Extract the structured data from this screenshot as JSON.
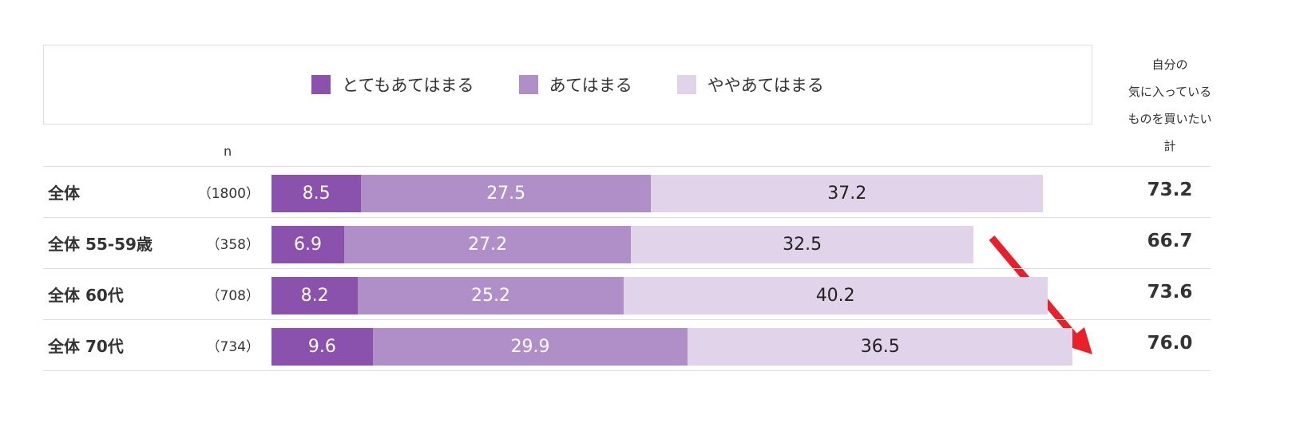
{
  "chart_data": {
    "type": "bar",
    "orientation": "horizontal",
    "stacked": true,
    "legend_position": "top",
    "n_header": "n",
    "total_header": [
      "自分の",
      "気に入っている",
      "ものを買いたい",
      "計"
    ],
    "categories": [
      "全体",
      "全体 55-59歳",
      "全体 60代",
      "全体 70代"
    ],
    "n_values": [
      "（1800）",
      "（358）",
      "（708）",
      "（734）"
    ],
    "series": [
      {
        "name": "とてもあてはまる",
        "color": "#8a52ad",
        "label_color": "#ffffff",
        "values": [
          8.5,
          6.9,
          8.2,
          9.6
        ]
      },
      {
        "name": "あてはまる",
        "color": "#b08fc9",
        "label_color": "#ffffff",
        "values": [
          27.5,
          27.2,
          25.2,
          29.9
        ]
      },
      {
        "name": "ややあてはまる",
        "color": "#e0d3ea",
        "label_color": "#222222",
        "values": [
          37.2,
          32.5,
          40.2,
          36.5
        ]
      }
    ],
    "totals": [
      "73.2",
      "66.7",
      "73.6",
      "76.0"
    ],
    "annotation": {
      "type": "arrow",
      "color": "#e8202a"
    }
  }
}
